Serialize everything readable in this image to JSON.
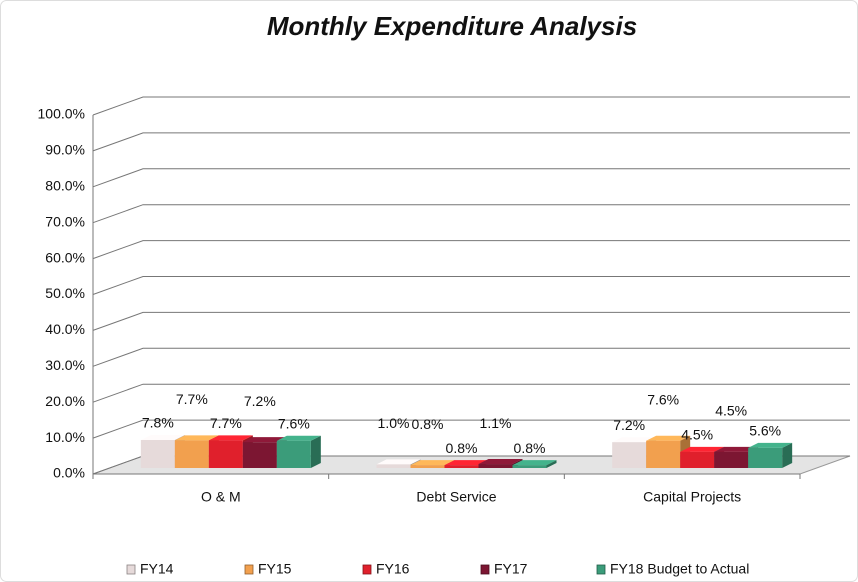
{
  "chart_data": {
    "type": "bar3d",
    "title": "Monthly Expenditure Analysis",
    "categories": [
      "O & M",
      "Debt Service",
      "Capital Projects"
    ],
    "series": [
      {
        "name": "FY14",
        "color": "#e6dada",
        "values": [
          7.8,
          1.0,
          7.2
        ],
        "value_labels": [
          "7.8%",
          "1.0%",
          "7.2%"
        ]
      },
      {
        "name": "FY15",
        "color": "#f2a04e",
        "values": [
          7.7,
          0.8,
          7.6
        ],
        "value_labels": [
          "7.7%",
          "0.8%",
          "7.6%"
        ]
      },
      {
        "name": "FY16",
        "color": "#e0202c",
        "values": [
          7.7,
          0.8,
          4.5
        ],
        "value_labels": [
          "7.7%",
          "0.8%",
          "4.5%"
        ]
      },
      {
        "name": "FY17",
        "color": "#7c1632",
        "values": [
          7.2,
          1.1,
          4.5
        ],
        "value_labels": [
          "7.2%",
          "1.1%",
          "4.5%"
        ]
      },
      {
        "name": "FY18 Budget to Actual",
        "color": "#3b9c7a",
        "values": [
          7.6,
          0.8,
          5.6
        ],
        "value_labels": [
          "7.6%",
          "0.8%",
          "5.6%"
        ]
      }
    ],
    "ylim": [
      0,
      100
    ],
    "yticks": [
      {
        "value": 0,
        "label": "0.0%"
      },
      {
        "value": 10,
        "label": "10.0%"
      },
      {
        "value": 20,
        "label": "20.0%"
      },
      {
        "value": 30,
        "label": "30.0%"
      },
      {
        "value": 40,
        "label": "40.0%"
      },
      {
        "value": 50,
        "label": "50.0%"
      },
      {
        "value": 60,
        "label": "60.0%"
      },
      {
        "value": 70,
        "label": "70.0%"
      },
      {
        "value": 80,
        "label": "80.0%"
      },
      {
        "value": 90,
        "label": "90.0%"
      },
      {
        "value": 100,
        "label": "100.0%"
      }
    ],
    "grid": true,
    "legend": "bottom"
  }
}
